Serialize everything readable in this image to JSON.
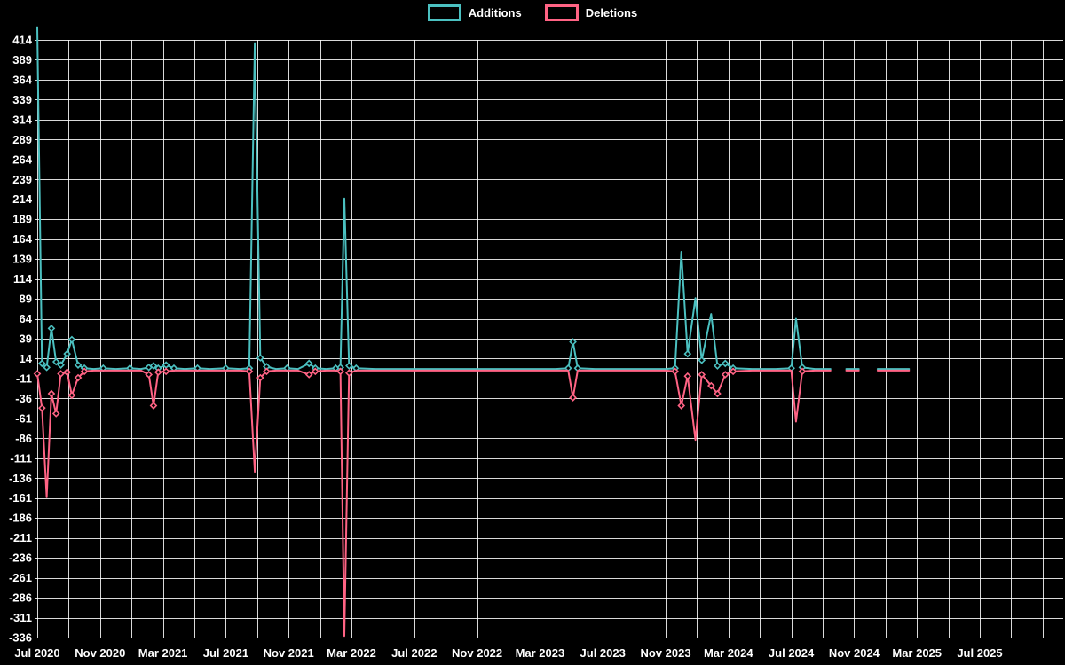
{
  "page": {
    "background": "#000000",
    "text_color": "#ffffff"
  },
  "chart_data": {
    "type": "line",
    "title": "",
    "legend_position": "top",
    "grid": true,
    "background": "#000000",
    "grid_color": "rgba(255,255,255,0.85)",
    "text_color": "#ffffff",
    "x_axis": {
      "unit": "months since Jul 2020",
      "tick_labels": [
        "Jul 2020",
        "Nov 2020",
        "Mar 2021",
        "Jul 2021",
        "Nov 2021",
        "Mar 2022",
        "Jul 2022",
        "Nov 2022",
        "Mar 2023",
        "Jul 2023",
        "Nov 2023",
        "Mar 2024",
        "Jul 2024",
        "Nov 2024",
        "Mar 2025",
        "Jul 2025"
      ],
      "tick_month_offsets": [
        0,
        4,
        8,
        12,
        16,
        20,
        24,
        28,
        32,
        36,
        40,
        44,
        48,
        52,
        56,
        60
      ]
    },
    "y_axis": {
      "ticks": [
        414,
        389,
        364,
        339,
        314,
        289,
        264,
        239,
        214,
        189,
        164,
        139,
        114,
        89,
        64,
        39,
        14,
        -11,
        -36,
        -61,
        -86,
        -111,
        -136,
        -161,
        -186,
        -211,
        -236,
        -261,
        -286,
        -311,
        -336
      ],
      "step": 25,
      "range": [
        -336,
        414
      ]
    },
    "x_months": [
      0,
      0.3,
      0.6,
      0.9,
      1.2,
      1.5,
      1.9,
      2.2,
      2.6,
      3.0,
      3.6,
      4.2,
      5.0,
      5.9,
      6.6,
      7.1,
      7.4,
      7.7,
      8.2,
      8.7,
      9.4,
      10.2,
      11.0,
      12.0,
      12.9,
      13.5,
      13.85,
      14.2,
      14.6,
      15.2,
      15.9,
      16.6,
      17.3,
      17.7,
      18.4,
      19.0,
      19.3,
      19.55,
      19.85,
      20.3,
      21.5,
      23.0,
      24.5,
      26.0,
      27.5,
      29.0,
      30.5,
      32.0,
      33.0,
      33.8,
      34.1,
      34.4,
      35.5,
      37.0,
      38.5,
      40.0,
      40.6,
      41.0,
      41.4,
      41.9,
      42.3,
      42.9,
      43.3,
      43.8,
      44.3,
      45.5,
      47.0,
      48.0,
      48.3,
      48.7,
      49.5,
      50.5,
      51.0,
      51.5,
      52.3,
      52.8,
      53.5,
      54.5,
      55.5
    ],
    "series": [
      {
        "name": "Additions",
        "color": "#4bc0c0",
        "values": [
          430,
          8,
          3,
          52,
          10,
          6,
          20,
          38,
          6,
          2,
          1,
          2,
          1,
          2,
          1,
          3,
          5,
          2,
          6,
          2,
          1,
          2,
          1,
          2,
          1,
          2,
          410,
          15,
          4,
          1,
          2,
          1,
          8,
          2,
          1,
          2,
          3,
          215,
          5,
          2,
          1,
          1,
          1,
          1,
          1,
          1,
          1,
          1,
          1,
          2,
          35,
          2,
          1,
          1,
          1,
          1,
          2,
          148,
          20,
          90,
          12,
          70,
          5,
          8,
          2,
          1,
          1,
          2,
          64,
          3,
          1,
          1,
          null,
          1,
          1,
          null,
          1,
          1,
          1
        ]
      },
      {
        "name": "Deletions",
        "color": "#ff6384",
        "values": [
          -5,
          -48,
          -160,
          -30,
          -55,
          -5,
          -3,
          -32,
          -10,
          -2,
          -1,
          -1,
          -1,
          -1,
          -1,
          -6,
          -45,
          -3,
          -2,
          -1,
          -1,
          -1,
          -1,
          -1,
          -1,
          -2,
          -128,
          -10,
          -2,
          -1,
          -1,
          -1,
          -6,
          -2,
          -1,
          -1,
          -2,
          -334,
          -4,
          -1,
          -1,
          -1,
          -1,
          -1,
          -1,
          -1,
          -1,
          -1,
          -1,
          -1,
          -35,
          -1,
          -1,
          -1,
          -1,
          -1,
          -2,
          -45,
          -8,
          -88,
          -6,
          -20,
          -30,
          -6,
          -2,
          -1,
          -1,
          -1,
          -65,
          -2,
          -1,
          -1,
          null,
          -1,
          -1,
          null,
          -1,
          -1,
          -1
        ]
      }
    ]
  }
}
